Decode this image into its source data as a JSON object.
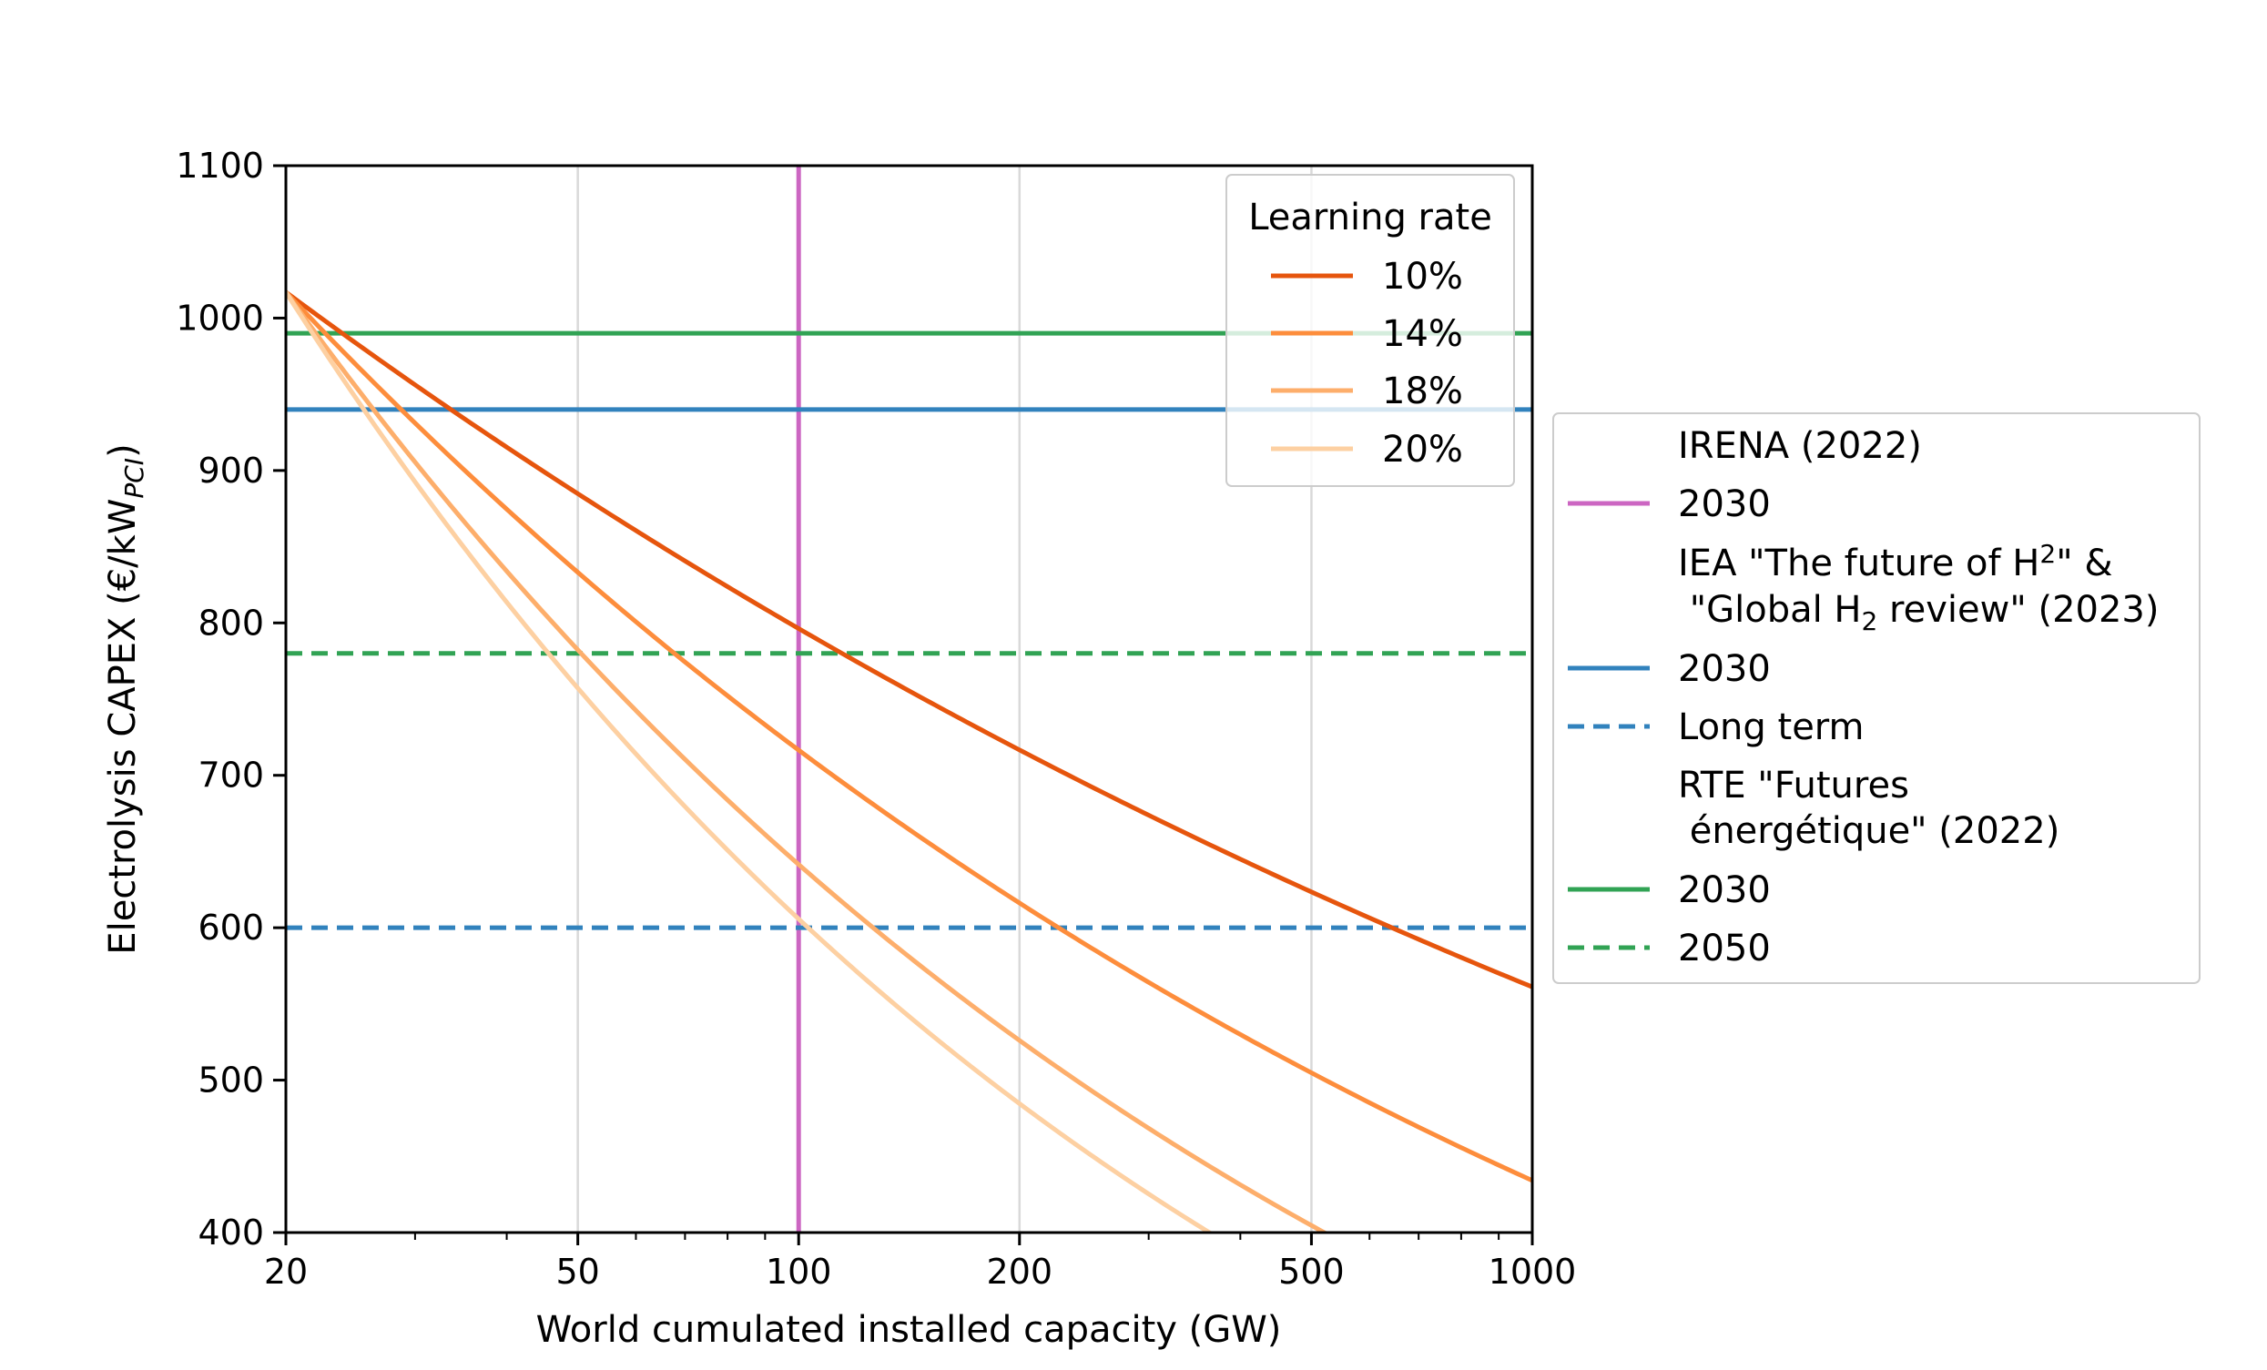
{
  "chart_data": {
    "type": "line",
    "xlabel": "World cumulated installed capacity (GW)",
    "ylabel": "Electrolysis CAPEX (€/kW",
    "ylabel_sub": "PCI",
    "ylabel_close": ")",
    "x_scale": "log",
    "xlim": [
      20,
      1000
    ],
    "ylim": [
      400,
      1100
    ],
    "x_ticks": [
      20,
      50,
      100,
      200,
      500,
      1000
    ],
    "x_tick_labels": [
      "20",
      "50",
      "100",
      "200",
      "500",
      "1000"
    ],
    "y_ticks": [
      400,
      500,
      600,
      700,
      800,
      900,
      1000,
      1100
    ],
    "y_tick_labels": [
      "400",
      "500",
      "600",
      "700",
      "800",
      "900",
      "1000",
      "1100"
    ],
    "grid": "vertical",
    "learning_curve_base": {
      "x0": 20,
      "y0": 1017
    },
    "series": [
      {
        "name": "10%",
        "learning_rate": 0.1,
        "color": "#e6550d",
        "x": [
          20,
          50,
          100,
          200,
          500,
          1000
        ],
        "y": [
          1017,
          883,
          797,
          717,
          623,
          561
        ]
      },
      {
        "name": "14%",
        "learning_rate": 0.14,
        "color": "#fd8d3c",
        "x": [
          20,
          50,
          100,
          200,
          500,
          1000
        ],
        "y": [
          1017,
          832,
          717,
          616,
          504,
          434
        ]
      },
      {
        "name": "18%",
        "learning_rate": 0.18,
        "color": "#fdae6b",
        "x": [
          20,
          50,
          100,
          200,
          500
        ],
        "y": [
          1017,
          784,
          643,
          527,
          406
        ]
      },
      {
        "name": "20%",
        "learning_rate": 0.2,
        "color": "#fdd0a2",
        "x": [
          20,
          50,
          100,
          200,
          350
        ],
        "y": [
          1017,
          760,
          608,
          487,
          401
        ]
      }
    ],
    "reference_lines": [
      {
        "group": "IRENA (2022)",
        "label": "2030",
        "orientation": "vertical",
        "x": 100,
        "color": "#cc66c2",
        "dashed": false
      },
      {
        "group": "IEA",
        "label": "2030",
        "orientation": "horizontal",
        "y": 940,
        "color": "#3182bd",
        "dashed": false
      },
      {
        "group": "IEA",
        "label": "Long term",
        "orientation": "horizontal",
        "y": 600,
        "color": "#3182bd",
        "dashed": true
      },
      {
        "group": "RTE",
        "label": "2030",
        "orientation": "horizontal",
        "y": 990,
        "color": "#31a354",
        "dashed": false
      },
      {
        "group": "RTE",
        "label": "2050",
        "orientation": "horizontal",
        "y": 780,
        "color": "#31a354",
        "dashed": true
      }
    ],
    "legend_learning_rate": {
      "title": "Learning rate",
      "placement": "top-right",
      "entries": [
        "10%",
        "14%",
        "18%",
        "20%"
      ]
    },
    "legend_references": {
      "placement": "right outside",
      "irena_header": "IRENA (2022)",
      "irena_2030": "2030",
      "iea_header_line1": "IEA \"The future of H",
      "iea_header_line1_sub": "2",
      "iea_header_line1_end": "\" &",
      "iea_header_line2": " \"Global H",
      "iea_header_line2_sub": "2",
      "iea_header_line2_end": " review\" (2023)",
      "iea_2030": "2030",
      "iea_long_term": "Long term",
      "rte_header_line1": "RTE \"Futures",
      "rte_header_line2": " énergétique\" (2022)",
      "rte_2030": "2030",
      "rte_2050": "2050"
    }
  }
}
